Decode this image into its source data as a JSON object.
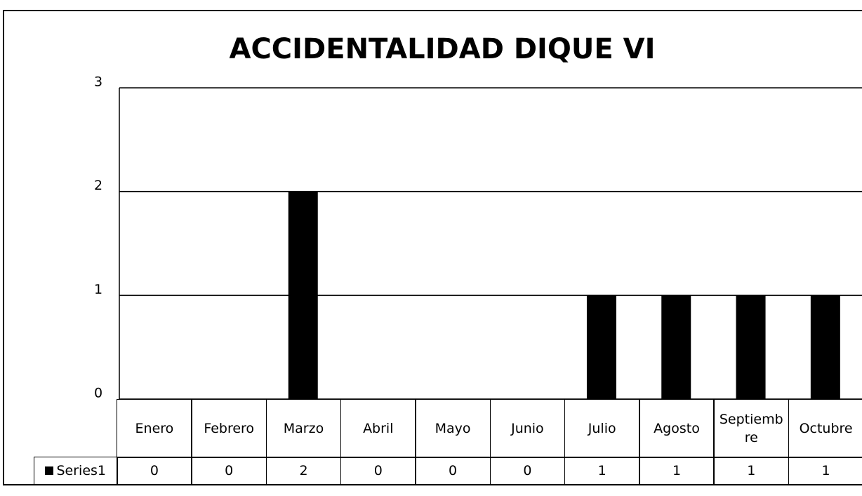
{
  "chart_data": {
    "type": "bar",
    "title": "ACCIDENTALIDAD DIQUE VI",
    "categories": [
      "Enero",
      "Febrero",
      "Marzo",
      "Abril",
      "Mayo",
      "Junio",
      "Julio",
      "Agosto",
      "Septiembre",
      "Octubre"
    ],
    "series": [
      {
        "name": "Series1",
        "color": "#000000",
        "values": [
          0,
          0,
          2,
          0,
          0,
          0,
          1,
          1,
          1,
          1
        ]
      }
    ],
    "ylim": [
      0,
      3
    ],
    "yticks": [
      0,
      1,
      2,
      3
    ],
    "grid": true
  }
}
